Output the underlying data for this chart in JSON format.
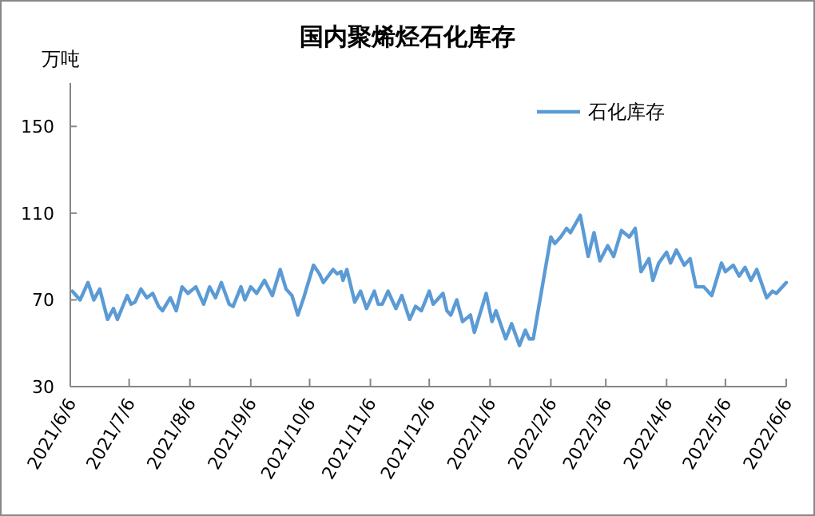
{
  "chart_data": {
    "type": "line",
    "title": "国内聚烯烃石化库存",
    "ylabel": "万吨",
    "legend": "top right",
    "grid": false,
    "marker": "none",
    "line_style": "solid",
    "xlim": [
      "2021-06-06",
      "2022-06-06"
    ],
    "ylim": [
      30,
      170
    ],
    "yticks": [
      30,
      70,
      110,
      150
    ],
    "xticks": [
      {
        "value": "2021-06-06",
        "label": "2021/6/6"
      },
      {
        "value": "2021-07-06",
        "label": "2021/7/6"
      },
      {
        "value": "2021-08-06",
        "label": "2021/8/6"
      },
      {
        "value": "2021-09-06",
        "label": "2021/9/6"
      },
      {
        "value": "2021-10-06",
        "label": "2021/10/6"
      },
      {
        "value": "2021-11-06",
        "label": "2021/11/6"
      },
      {
        "value": "2021-12-06",
        "label": "2021/12/6"
      },
      {
        "value": "2022-01-06",
        "label": "2022/1/6"
      },
      {
        "value": "2022-02-06",
        "label": "2022/2/6"
      },
      {
        "value": "2022-03-06",
        "label": "2022/3/6"
      },
      {
        "value": "2022-04-06",
        "label": "2022/4/6"
      },
      {
        "value": "2022-05-06",
        "label": "2022/5/6"
      },
      {
        "value": "2022-06-06",
        "label": "2022/6/6"
      }
    ],
    "x": [
      "2021-06-07",
      "2021-06-11",
      "2021-06-15",
      "2021-06-18",
      "2021-06-21",
      "2021-06-25",
      "2021-06-28",
      "2021-06-30",
      "2021-07-05",
      "2021-07-07",
      "2021-07-09",
      "2021-07-12",
      "2021-07-15",
      "2021-07-18",
      "2021-07-21",
      "2021-07-23",
      "2021-07-27",
      "2021-07-30",
      "2021-08-02",
      "2021-08-05",
      "2021-08-09",
      "2021-08-13",
      "2021-08-16",
      "2021-08-19",
      "2021-08-22",
      "2021-08-26",
      "2021-08-28",
      "2021-09-01",
      "2021-09-03",
      "2021-09-06",
      "2021-09-09",
      "2021-09-13",
      "2021-09-17",
      "2021-09-21",
      "2021-09-24",
      "2021-09-27",
      "2021-09-30",
      "2021-10-03",
      "2021-10-08",
      "2021-10-11",
      "2021-10-13",
      "2021-10-18",
      "2021-10-20",
      "2021-10-22",
      "2021-10-23",
      "2021-10-25",
      "2021-10-29",
      "2021-11-01",
      "2021-11-04",
      "2021-11-08",
      "2021-11-10",
      "2021-11-12",
      "2021-11-15",
      "2021-11-19",
      "2021-11-22",
      "2021-11-26",
      "2021-11-29",
      "2021-12-02",
      "2021-12-06",
      "2021-12-08",
      "2021-12-10",
      "2021-12-13",
      "2021-12-15",
      "2021-12-17",
      "2021-12-20",
      "2021-12-23",
      "2021-12-27",
      "2021-12-29",
      "2022-01-04",
      "2022-01-07",
      "2022-01-09",
      "2022-01-14",
      "2022-01-17",
      "2022-01-21",
      "2022-01-24",
      "2022-01-26",
      "2022-01-28",
      "2022-02-06",
      "2022-02-08",
      "2022-02-11",
      "2022-02-14",
      "2022-02-16",
      "2022-02-21",
      "2022-02-25",
      "2022-02-28",
      "2022-03-03",
      "2022-03-07",
      "2022-03-10",
      "2022-03-14",
      "2022-03-18",
      "2022-03-21",
      "2022-03-24",
      "2022-03-28",
      "2022-03-30",
      "2022-04-02",
      "2022-04-06",
      "2022-04-08",
      "2022-04-11",
      "2022-04-15",
      "2022-04-18",
      "2022-04-21",
      "2022-04-25",
      "2022-04-29",
      "2022-05-04",
      "2022-05-06",
      "2022-05-10",
      "2022-05-13",
      "2022-05-16",
      "2022-05-19",
      "2022-05-22",
      "2022-05-27",
      "2022-05-30",
      "2022-06-01",
      "2022-06-06"
    ],
    "series": [
      {
        "name": "石化库存",
        "color": "#5b9bd5",
        "values": [
          74,
          70,
          78,
          70,
          75,
          61,
          66,
          61,
          72,
          68,
          69,
          75,
          71,
          73,
          67,
          65,
          71,
          65,
          76,
          73,
          76,
          68,
          76,
          71,
          78,
          68,
          67,
          76,
          70,
          76,
          73,
          79,
          72,
          84,
          75,
          72,
          63,
          71,
          86,
          82,
          78,
          84,
          82,
          83,
          79,
          84,
          69,
          74,
          66,
          74,
          68,
          68,
          74,
          66,
          72,
          61,
          67,
          65,
          74,
          68,
          70,
          73,
          65,
          63,
          70,
          60,
          63,
          55,
          73,
          60,
          65,
          52,
          59,
          49,
          56,
          52,
          52,
          99,
          96,
          99,
          103,
          101,
          109,
          90,
          101,
          88,
          95,
          90,
          102,
          99,
          103,
          83,
          89,
          79,
          87,
          92,
          87,
          93,
          86,
          89,
          76,
          76,
          72,
          87,
          83,
          86,
          81,
          85,
          79,
          84,
          71,
          74,
          73,
          78
        ]
      }
    ]
  }
}
